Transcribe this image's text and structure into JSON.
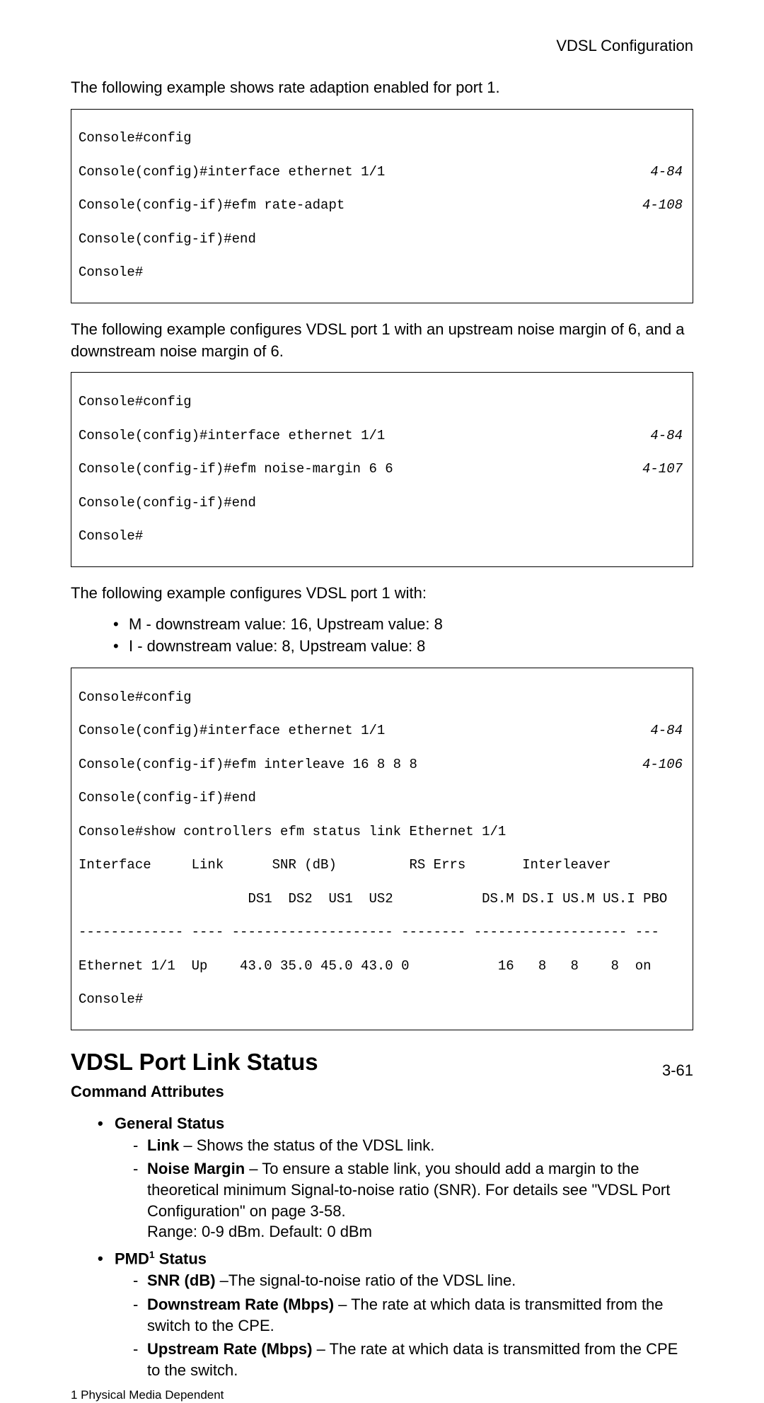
{
  "header": {
    "right": "VDSL Configuration"
  },
  "para1": "The following example shows rate adaption enabled for port 1.",
  "code1": {
    "l1": "Console#config",
    "l2": "Console(config)#interface ethernet 1/1",
    "l2ref": "4-84",
    "l3": "Console(config-if)#efm rate-adapt",
    "l3ref": "4-108",
    "l4": "Console(config-if)#end",
    "l5": "Console#"
  },
  "para2": "The following example configures VDSL port 1 with an upstream noise margin of 6, and a downstream noise margin of 6.",
  "code2": {
    "l1": "Console#config",
    "l2": "Console(config)#interface ethernet 1/1",
    "l2ref": "4-84",
    "l3": "Console(config-if)#efm noise-margin 6 6",
    "l3ref": "4-107",
    "l4": "Console(config-if)#end",
    "l5": "Console#"
  },
  "para3": "The following example configures VDSL port 1 with:",
  "para3_bullets": {
    "b1": "M - downstream value: 16, Upstream value: 8",
    "b2": "I - downstream value: 8, Upstream value: 8"
  },
  "code3": {
    "l1": "Console#config",
    "l2": "Console(config)#interface ethernet 1/1",
    "l2ref": "4-84",
    "l3": "Console(config-if)#efm interleave 16 8 8 8",
    "l3ref": "4-106",
    "l4": "Console(config-if)#end",
    "l5": "Console#show controllers efm status link Ethernet 1/1",
    "l6": "Interface     Link      SNR (dB)         RS Errs       Interleaver",
    "l7": "                     DS1  DS2  US1  US2           DS.M DS.I US.M US.I PBO",
    "l8": "------------- ---- -------------------- -------- ------------------- ---",
    "l9": "Ethernet 1/1  Up    43.0 35.0 45.0 43.0 0           16   8   8    8  on",
    "l10": "Console#"
  },
  "section": {
    "title": "VDSL Port Link Status",
    "subtitle": "Command Attributes",
    "general_status_label": "General Status",
    "link_label": "Link",
    "link_text": " – Shows the status of the VDSL link.",
    "nm_label": "Noise Margin",
    "nm_text": " – To ensure a stable link, you should add a margin to the theoretical minimum Signal-to-noise ratio (SNR). For details see \"VDSL Port Configuration\" on page 3-58.",
    "nm_range": "Range: 0-9 dBm. Default: 0 dBm",
    "pmd_label_prefix": "PMD",
    "pmd_sup": "1",
    "pmd_label_suffix": " Status",
    "snr_label": "SNR (dB)",
    "snr_text": " –The signal-to-noise ratio of the VDSL line.",
    "dsr_label": "Downstream Rate (Mbps)",
    "dsr_text": " – The rate at which data is transmitted from the switch to the CPE.",
    "usr_label": "Upstream Rate (Mbps)",
    "usr_text": " – The rate at which data is transmitted from the CPE to the switch."
  },
  "footnote": "1 Physical Media Dependent",
  "page_number": "3-61"
}
